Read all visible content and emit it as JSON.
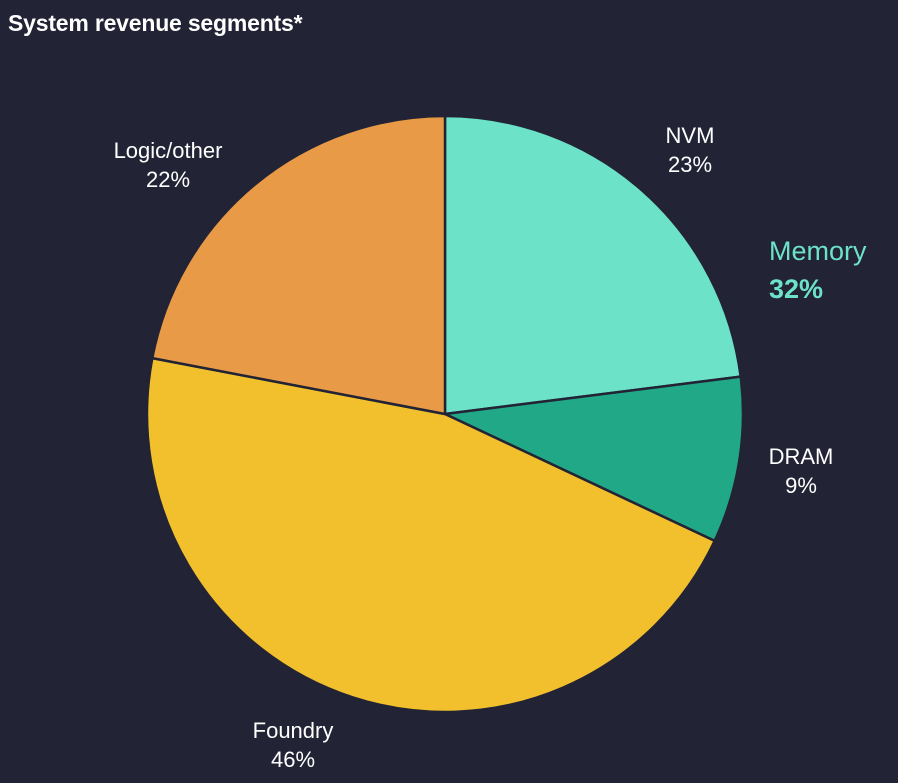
{
  "title": "System revenue segments*",
  "colors": {
    "background": "#222335",
    "NVM": "#6ce3c8",
    "DRAM": "#21a886",
    "Foundry": "#f1c02c",
    "Logic/other": "#e89a46",
    "memory_group": "#6ce3c8",
    "slice_border": "#222335"
  },
  "chart_data": {
    "type": "pie",
    "title": "System revenue segments*",
    "start_angle_deg": 0,
    "direction": "clockwise",
    "slices": [
      {
        "name": "NVM",
        "value": 23,
        "label": "23%"
      },
      {
        "name": "DRAM",
        "value": 9,
        "label": "9%"
      },
      {
        "name": "Foundry",
        "value": 46,
        "label": "46%"
      },
      {
        "name": "Logic/other",
        "value": 22,
        "label": "22%"
      }
    ],
    "groups": [
      {
        "name": "Memory",
        "value": 32,
        "label": "32%",
        "members": [
          "NVM",
          "DRAM"
        ]
      }
    ]
  }
}
